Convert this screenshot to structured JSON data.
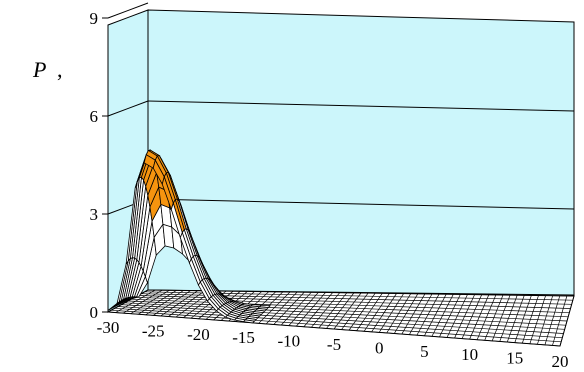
{
  "chart_data": {
    "type": "surface",
    "ylabel_symbol": "P",
    "ylabel_unit": ",",
    "z_ticks": [
      "0",
      "3",
      "6",
      "9"
    ],
    "zlim": [
      0,
      9
    ],
    "x_ticks": [
      "-30",
      "-25",
      "-20",
      "-15",
      "-10",
      "-5",
      "0",
      "5",
      "10",
      "15",
      "20"
    ],
    "xlim": [
      -30,
      20
    ],
    "peak": {
      "x": -25.5,
      "value": 5.0
    },
    "profile_x": [
      -30,
      -29,
      -28,
      -27,
      -26,
      -25,
      -24,
      -23,
      -22,
      -21,
      -20,
      -19,
      -18,
      -17,
      -16,
      -15,
      -14
    ],
    "profile_values": [
      0.05,
      0.3,
      1.6,
      4.1,
      4.95,
      4.8,
      4.3,
      3.5,
      2.6,
      1.8,
      1.1,
      0.6,
      0.3,
      0.12,
      0.05,
      0.02,
      0.0
    ],
    "band_colors": {
      "0-3": "#ffffff",
      "3-6": "#f5940f",
      "6-9": "#ffffff"
    },
    "wall_color": "#ccf6fb",
    "grid": true
  }
}
